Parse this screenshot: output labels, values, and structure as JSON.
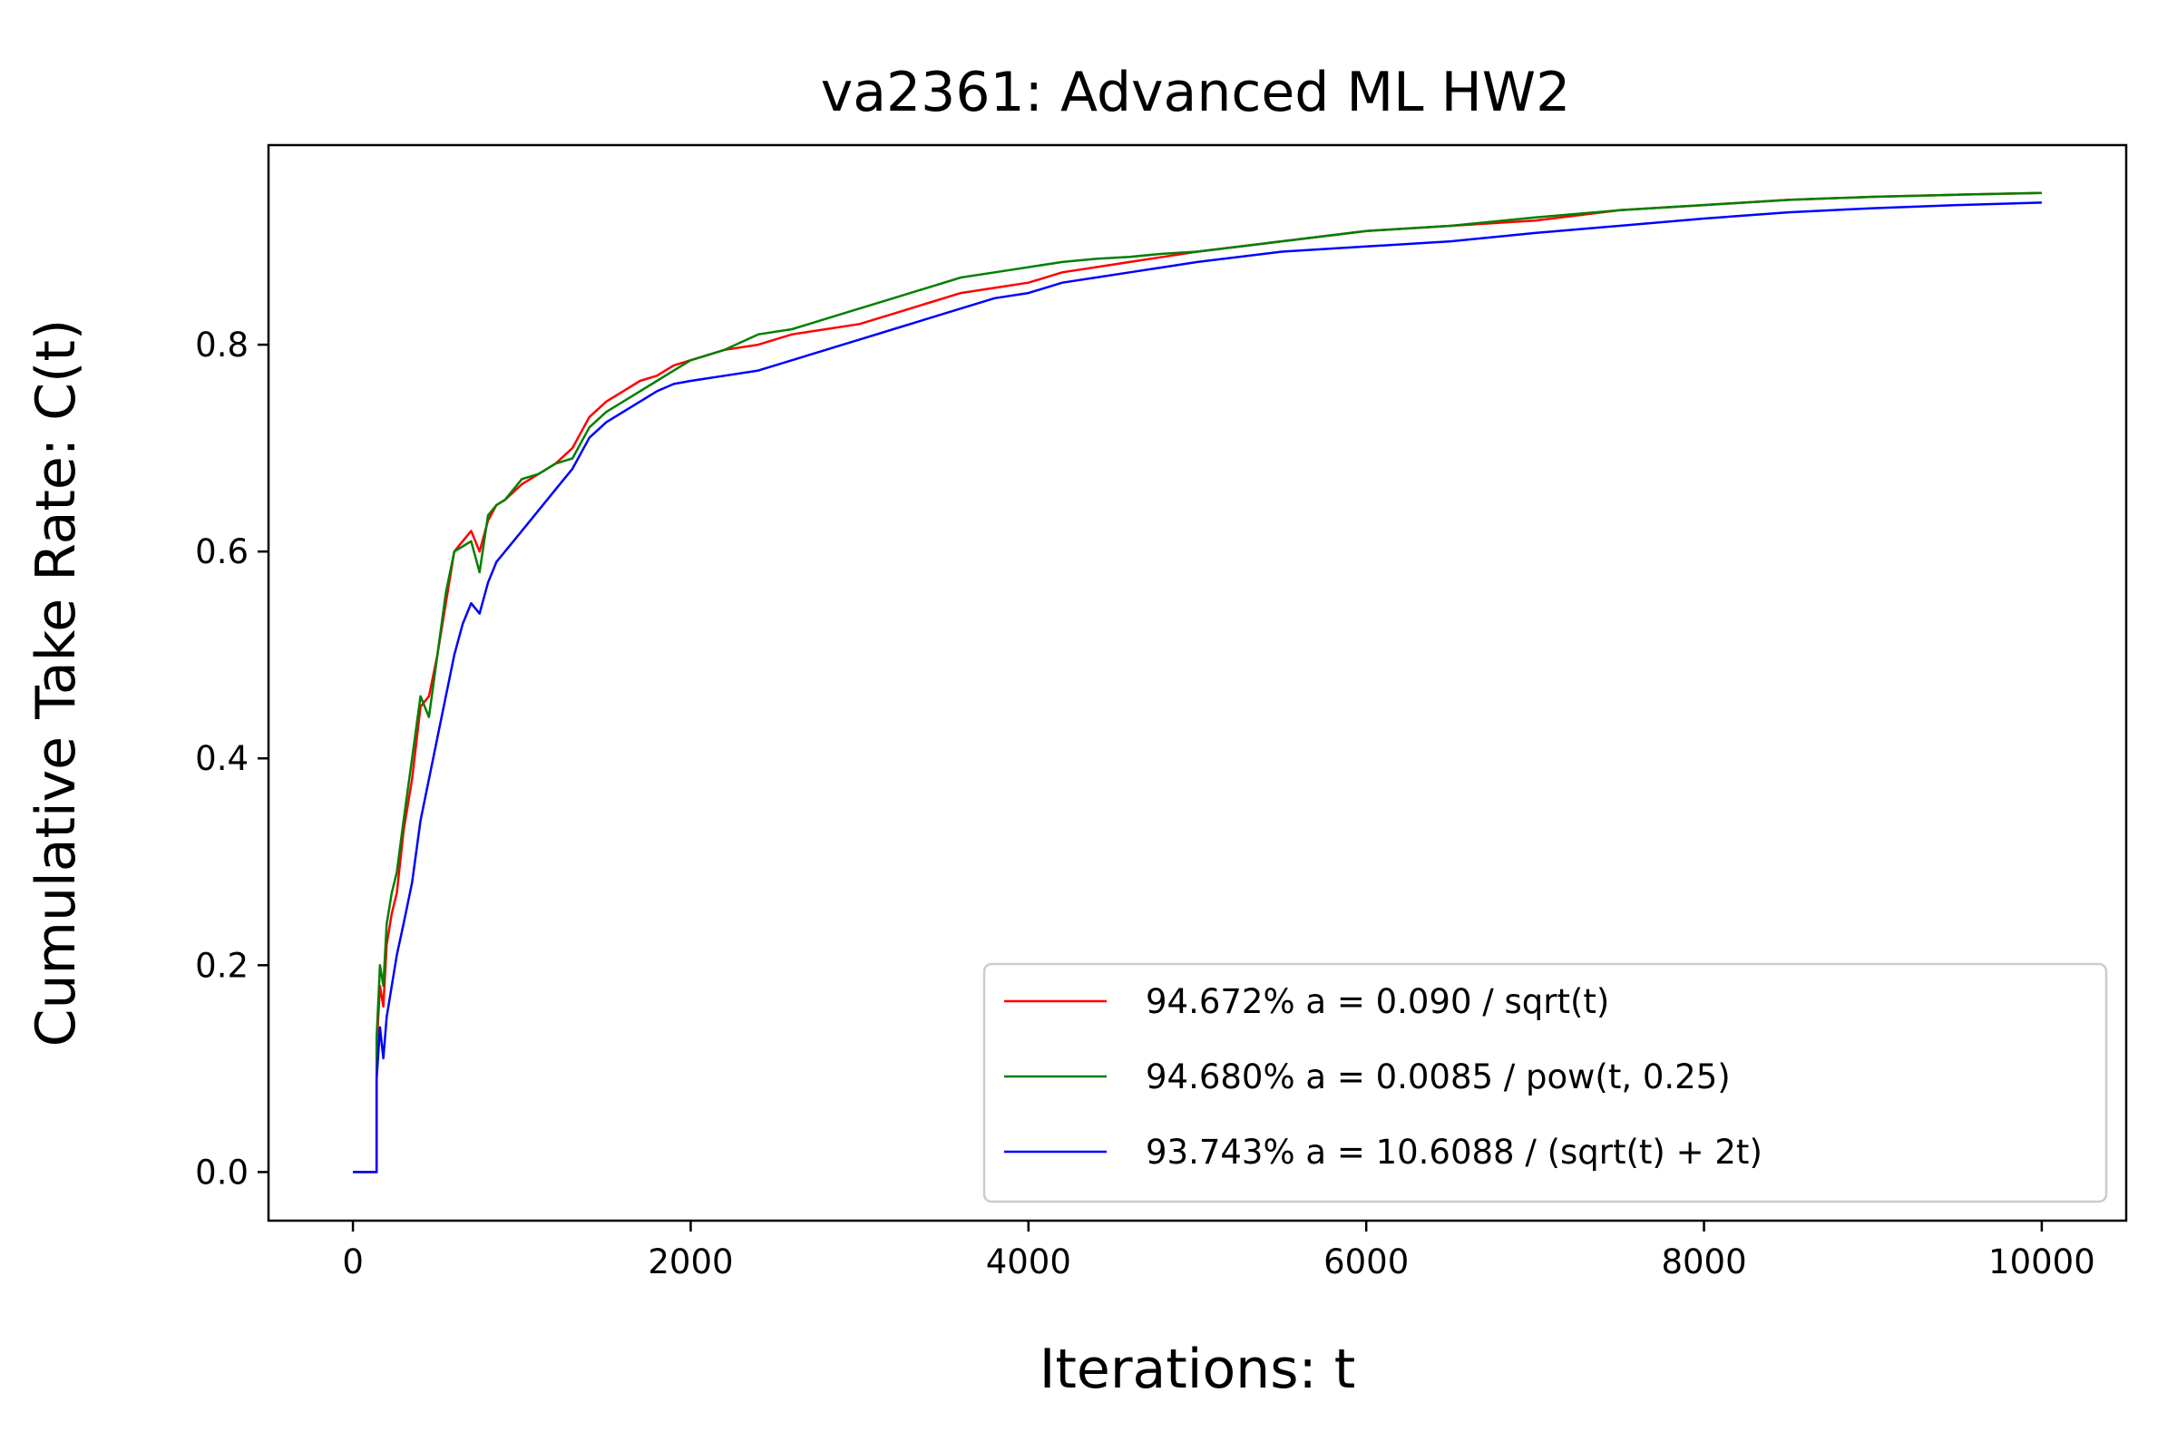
{
  "chart_data": {
    "type": "line",
    "title": "va2361: Advanced ML HW2",
    "xlabel": "Iterations: t",
    "ylabel": "Cumulative Take Rate: C(t)",
    "xlim": [
      -500,
      10500
    ],
    "ylim": [
      -0.047,
      0.993
    ],
    "xticks": [
      0,
      2000,
      4000,
      6000,
      8000,
      10000
    ],
    "xtick_labels": [
      "0",
      "2000",
      "4000",
      "6000",
      "8000",
      "10000"
    ],
    "yticks": [
      0.0,
      0.2,
      0.4,
      0.6,
      0.8
    ],
    "ytick_labels": [
      "0.0",
      "0.2",
      "0.4",
      "0.6",
      "0.8"
    ],
    "grid": false,
    "legend_position": "lower-right",
    "series": [
      {
        "name": "94.672% a = 0.090 / sqrt(t)",
        "color": "#ff0000",
        "x": [
          0,
          140,
          140,
          160,
          180,
          200,
          230,
          260,
          300,
          350,
          400,
          450,
          500,
          550,
          600,
          650,
          700,
          750,
          800,
          850,
          900,
          1000,
          1100,
          1200,
          1300,
          1400,
          1500,
          1600,
          1700,
          1800,
          1900,
          2000,
          2200,
          2400,
          2600,
          2800,
          3000,
          3200,
          3400,
          3600,
          3800,
          4000,
          4200,
          4400,
          4600,
          4800,
          5000,
          5500,
          6000,
          6500,
          7000,
          7500,
          8000,
          8500,
          9000,
          9500,
          10000
        ],
        "y": [
          0.0,
          0.0,
          0.12,
          0.18,
          0.16,
          0.22,
          0.25,
          0.27,
          0.33,
          0.38,
          0.45,
          0.46,
          0.5,
          0.55,
          0.6,
          0.61,
          0.62,
          0.6,
          0.63,
          0.645,
          0.65,
          0.665,
          0.675,
          0.685,
          0.7,
          0.73,
          0.745,
          0.755,
          0.765,
          0.77,
          0.78,
          0.785,
          0.795,
          0.8,
          0.81,
          0.815,
          0.82,
          0.83,
          0.84,
          0.85,
          0.855,
          0.86,
          0.87,
          0.875,
          0.88,
          0.885,
          0.89,
          0.9,
          0.91,
          0.915,
          0.92,
          0.93,
          0.935,
          0.94,
          0.943,
          0.945,
          0.9467
        ]
      },
      {
        "name": "94.680% a = 0.0085 / pow(t, 0.25)",
        "color": "#008000",
        "x": [
          0,
          140,
          140,
          160,
          180,
          200,
          230,
          260,
          300,
          350,
          400,
          450,
          500,
          550,
          600,
          650,
          700,
          750,
          800,
          850,
          900,
          1000,
          1100,
          1200,
          1300,
          1400,
          1500,
          1600,
          1700,
          1800,
          1900,
          2000,
          2200,
          2400,
          2600,
          2800,
          3000,
          3200,
          3400,
          3600,
          3800,
          4000,
          4200,
          4400,
          4600,
          4800,
          5000,
          5500,
          6000,
          6500,
          7000,
          7500,
          8000,
          8500,
          9000,
          9500,
          10000
        ],
        "y": [
          0.0,
          0.0,
          0.13,
          0.2,
          0.18,
          0.24,
          0.27,
          0.29,
          0.34,
          0.4,
          0.46,
          0.44,
          0.5,
          0.56,
          0.6,
          0.605,
          0.61,
          0.58,
          0.635,
          0.645,
          0.65,
          0.67,
          0.675,
          0.685,
          0.69,
          0.72,
          0.735,
          0.745,
          0.755,
          0.765,
          0.775,
          0.785,
          0.795,
          0.81,
          0.815,
          0.825,
          0.835,
          0.845,
          0.855,
          0.865,
          0.87,
          0.875,
          0.88,
          0.883,
          0.885,
          0.888,
          0.89,
          0.9,
          0.91,
          0.915,
          0.923,
          0.93,
          0.935,
          0.94,
          0.943,
          0.945,
          0.9468
        ]
      },
      {
        "name": "93.743% a = 10.6088 / (sqrt(t) + 2t)",
        "color": "#0000ff",
        "x": [
          0,
          140,
          140,
          160,
          180,
          200,
          230,
          260,
          300,
          350,
          400,
          450,
          500,
          550,
          600,
          650,
          700,
          750,
          800,
          850,
          900,
          1000,
          1100,
          1200,
          1300,
          1400,
          1500,
          1600,
          1700,
          1800,
          1900,
          2000,
          2200,
          2400,
          2600,
          2800,
          3000,
          3200,
          3400,
          3600,
          3800,
          4000,
          4200,
          4400,
          4600,
          4800,
          5000,
          5500,
          6000,
          6500,
          7000,
          7500,
          8000,
          8500,
          9000,
          9500,
          10000
        ],
        "y": [
          0.0,
          0.0,
          0.09,
          0.14,
          0.11,
          0.15,
          0.18,
          0.21,
          0.24,
          0.28,
          0.34,
          0.38,
          0.42,
          0.46,
          0.5,
          0.53,
          0.55,
          0.54,
          0.57,
          0.59,
          0.6,
          0.62,
          0.64,
          0.66,
          0.68,
          0.71,
          0.725,
          0.735,
          0.745,
          0.755,
          0.762,
          0.765,
          0.77,
          0.775,
          0.785,
          0.795,
          0.805,
          0.815,
          0.825,
          0.835,
          0.845,
          0.85,
          0.86,
          0.865,
          0.87,
          0.875,
          0.88,
          0.89,
          0.895,
          0.9,
          0.908,
          0.915,
          0.922,
          0.928,
          0.932,
          0.935,
          0.9374
        ]
      }
    ]
  }
}
